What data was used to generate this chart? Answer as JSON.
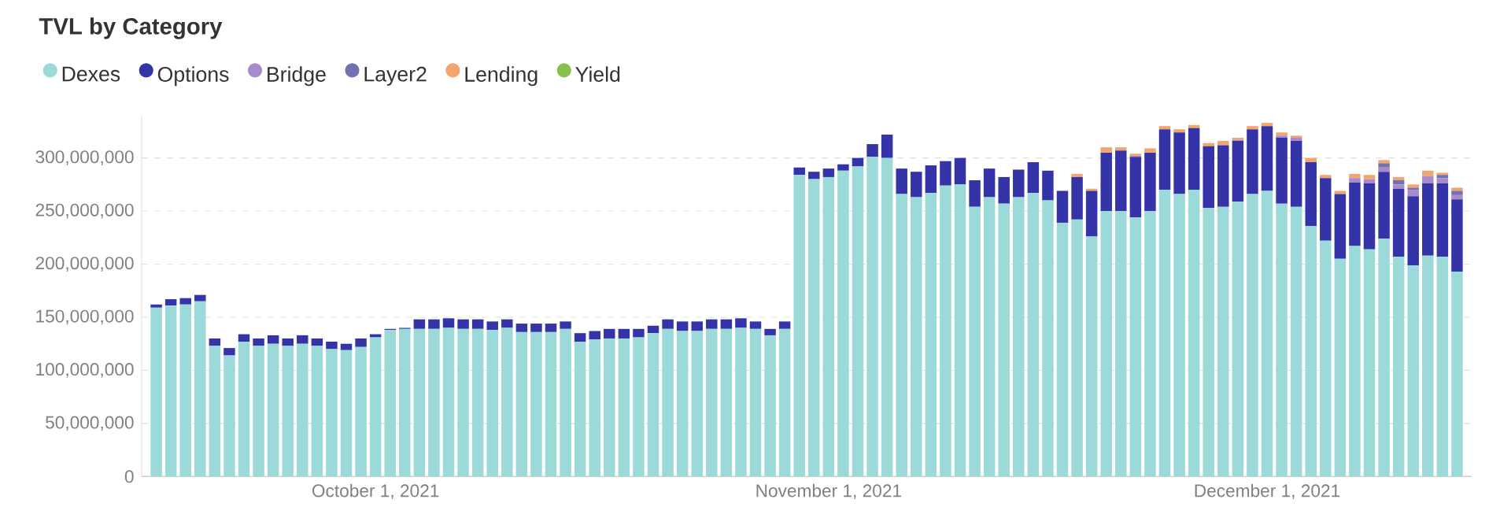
{
  "chart_data": {
    "type": "bar",
    "stacked": true,
    "title": "TVL by Category",
    "legend": "top left",
    "grid": "y",
    "xlim": [
      "2021-09-15",
      "2021-12-15"
    ],
    "xticks": [
      {
        "value": "2021-10-01",
        "label": "October 1, 2021"
      },
      {
        "value": "2021-11-01",
        "label": "November 1, 2021"
      },
      {
        "value": "2021-12-01",
        "label": "December 1, 2021"
      }
    ],
    "ylim": [
      0,
      340000000
    ],
    "yticks": [
      0,
      {
        "value": 50000000,
        "label": "50,000,000"
      },
      {
        "value": 100000000,
        "label": "100,000,000"
      },
      {
        "value": 150000000,
        "label": "150,000,000"
      },
      {
        "value": 200000000,
        "label": "200,000,000"
      },
      {
        "value": 250000000,
        "label": "250,000,000"
      },
      {
        "value": 300000000,
        "label": "300,000,000"
      }
    ],
    "x": [
      "2021-09-16",
      "2021-09-17",
      "2021-09-18",
      "2021-09-19",
      "2021-09-20",
      "2021-09-21",
      "2021-09-22",
      "2021-09-23",
      "2021-09-24",
      "2021-09-25",
      "2021-09-26",
      "2021-09-27",
      "2021-09-28",
      "2021-09-29",
      "2021-09-30",
      "2021-10-01",
      "2021-10-02",
      "2021-10-03",
      "2021-10-04",
      "2021-10-05",
      "2021-10-06",
      "2021-10-07",
      "2021-10-08",
      "2021-10-09",
      "2021-10-10",
      "2021-10-11",
      "2021-10-12",
      "2021-10-13",
      "2021-10-14",
      "2021-10-15",
      "2021-10-16",
      "2021-10-17",
      "2021-10-18",
      "2021-10-19",
      "2021-10-20",
      "2021-10-21",
      "2021-10-22",
      "2021-10-23",
      "2021-10-24",
      "2021-10-25",
      "2021-10-26",
      "2021-10-27",
      "2021-10-28",
      "2021-10-29",
      "2021-10-30",
      "2021-10-31",
      "2021-11-01",
      "2021-11-02",
      "2021-11-03",
      "2021-11-04",
      "2021-11-05",
      "2021-11-06",
      "2021-11-07",
      "2021-11-08",
      "2021-11-09",
      "2021-11-10",
      "2021-11-11",
      "2021-11-12",
      "2021-11-13",
      "2021-11-14",
      "2021-11-15",
      "2021-11-16",
      "2021-11-17",
      "2021-11-18",
      "2021-11-19",
      "2021-11-20",
      "2021-11-21",
      "2021-11-22",
      "2021-11-23",
      "2021-11-24",
      "2021-11-25",
      "2021-11-26",
      "2021-11-27",
      "2021-11-28",
      "2021-11-29",
      "2021-11-30",
      "2021-12-01",
      "2021-12-02",
      "2021-12-03",
      "2021-12-04",
      "2021-12-05",
      "2021-12-06",
      "2021-12-07",
      "2021-12-08",
      "2021-12-09",
      "2021-12-10",
      "2021-12-11",
      "2021-12-12",
      "2021-12-13",
      "2021-12-14"
    ],
    "series": [
      {
        "name": "Dexes",
        "color": "#9cd9d9",
        "values": [
          159000000,
          161000000,
          162000000,
          165000000,
          123000000,
          114000000,
          127000000,
          123000000,
          125000000,
          123000000,
          125000000,
          123000000,
          120000000,
          119000000,
          122000000,
          131000000,
          138000000,
          139000000,
          139000000,
          139000000,
          140000000,
          139000000,
          139000000,
          138000000,
          140000000,
          136000000,
          136000000,
          136000000,
          139000000,
          127000000,
          129000000,
          130000000,
          130000000,
          131000000,
          135000000,
          139000000,
          137000000,
          137000000,
          139000000,
          139000000,
          140000000,
          139000000,
          133000000,
          139000000,
          284000000,
          280000000,
          282000000,
          288000000,
          292000000,
          301000000,
          300000000,
          266000000,
          263000000,
          267000000,
          274000000,
          275000000,
          254000000,
          263000000,
          257000000,
          263000000,
          267000000,
          260000000,
          239000000,
          242000000,
          226000000,
          250000000,
          250000000,
          244000000,
          250000000,
          270000000,
          266000000,
          270000000,
          253000000,
          254000000,
          259000000,
          266000000,
          269000000,
          257000000,
          254000000,
          236000000,
          222000000,
          205000000,
          217000000,
          214000000,
          224000000,
          207000000,
          199000000,
          208000000,
          207000000,
          193000000
        ]
      },
      {
        "name": "Options",
        "color": "#3434a8",
        "values": [
          3000000,
          6000000,
          6000000,
          6000000,
          7000000,
          7000000,
          7000000,
          7000000,
          8000000,
          7000000,
          8000000,
          7000000,
          7000000,
          6000000,
          8000000,
          3000000,
          1000000,
          1000000,
          9000000,
          9000000,
          9000000,
          9000000,
          9000000,
          8000000,
          8000000,
          8000000,
          8000000,
          8000000,
          7000000,
          8000000,
          8000000,
          9000000,
          9000000,
          8000000,
          7000000,
          9000000,
          9000000,
          9000000,
          9000000,
          9000000,
          9000000,
          7000000,
          6000000,
          7000000,
          7000000,
          7000000,
          8000000,
          6000000,
          8000000,
          12000000,
          22000000,
          24000000,
          24000000,
          26000000,
          23000000,
          25000000,
          25000000,
          27000000,
          25000000,
          26000000,
          29000000,
          28000000,
          30000000,
          40000000,
          43000000,
          55000000,
          57000000,
          57000000,
          55000000,
          57000000,
          58000000,
          58000000,
          58000000,
          58000000,
          57000000,
          61000000,
          61000000,
          62000000,
          62000000,
          60000000,
          59000000,
          61000000,
          60000000,
          62000000,
          63000000,
          64000000,
          65000000,
          68000000,
          69000000,
          68000000
        ]
      },
      {
        "name": "Bridge",
        "color": "#a98acb",
        "values": [
          null,
          null,
          null,
          null,
          null,
          null,
          null,
          null,
          null,
          null,
          null,
          null,
          null,
          null,
          null,
          null,
          null,
          null,
          null,
          null,
          null,
          null,
          null,
          null,
          null,
          null,
          null,
          null,
          null,
          null,
          null,
          null,
          null,
          null,
          null,
          null,
          null,
          null,
          null,
          null,
          null,
          null,
          null,
          null,
          null,
          null,
          null,
          null,
          null,
          null,
          null,
          null,
          null,
          null,
          null,
          null,
          null,
          null,
          null,
          null,
          null,
          null,
          null,
          null,
          null,
          null,
          null,
          1000000,
          null,
          null,
          null,
          null,
          null,
          null,
          1000000,
          null,
          null,
          2000000,
          3000000,
          null,
          null,
          null,
          4000000,
          4000000,
          4000000,
          4000000,
          6000000,
          7000000,
          5000000,
          4000000
        ]
      },
      {
        "name": "Layer2",
        "color": "#7272b0",
        "values": [
          null,
          null,
          null,
          null,
          null,
          null,
          null,
          null,
          null,
          null,
          null,
          null,
          null,
          null,
          null,
          null,
          null,
          null,
          null,
          null,
          null,
          null,
          null,
          null,
          null,
          null,
          null,
          null,
          null,
          null,
          null,
          null,
          null,
          null,
          null,
          null,
          null,
          null,
          null,
          null,
          null,
          null,
          null,
          null,
          null,
          null,
          null,
          null,
          null,
          null,
          null,
          null,
          null,
          null,
          null,
          null,
          null,
          null,
          null,
          null,
          null,
          null,
          null,
          null,
          null,
          null,
          null,
          null,
          null,
          null,
          null,
          null,
          null,
          null,
          null,
          null,
          null,
          null,
          null,
          null,
          null,
          null,
          null,
          null,
          4000000,
          4000000,
          2000000,
          null,
          3000000,
          4000000
        ]
      },
      {
        "name": "Lending",
        "color": "#f2a66e",
        "values": [
          null,
          null,
          null,
          null,
          null,
          null,
          null,
          null,
          null,
          null,
          null,
          null,
          null,
          null,
          null,
          null,
          null,
          null,
          null,
          null,
          null,
          null,
          null,
          null,
          null,
          null,
          null,
          null,
          null,
          null,
          null,
          null,
          null,
          null,
          null,
          null,
          null,
          null,
          null,
          null,
          null,
          null,
          null,
          null,
          null,
          null,
          null,
          null,
          null,
          null,
          null,
          null,
          null,
          null,
          null,
          null,
          null,
          null,
          null,
          null,
          null,
          null,
          null,
          3000000,
          2000000,
          5000000,
          3000000,
          2000000,
          4000000,
          3000000,
          3000000,
          3000000,
          3000000,
          4000000,
          2000000,
          3000000,
          3000000,
          3000000,
          2000000,
          4000000,
          3000000,
          3000000,
          4000000,
          4000000,
          3000000,
          3000000,
          3000000,
          5000000,
          2000000,
          3000000
        ]
      },
      {
        "name": "Yield",
        "color": "#88bf4d",
        "values": [
          null,
          null,
          null,
          null,
          null,
          null,
          null,
          null,
          null,
          null,
          null,
          null,
          null,
          null,
          null,
          null,
          null,
          null,
          null,
          null,
          null,
          null,
          null,
          null,
          null,
          null,
          null,
          null,
          null,
          null,
          null,
          null,
          null,
          null,
          null,
          null,
          null,
          null,
          null,
          null,
          null,
          null,
          null,
          null,
          null,
          null,
          null,
          null,
          null,
          null,
          null,
          null,
          null,
          null,
          null,
          null,
          null,
          null,
          null,
          null,
          null,
          null,
          null,
          null,
          null,
          null,
          null,
          null,
          null,
          null,
          null,
          null,
          null,
          null,
          null,
          null,
          null,
          null,
          null,
          null,
          null,
          null,
          null,
          null,
          null,
          null,
          null,
          null,
          null,
          null
        ]
      }
    ]
  }
}
